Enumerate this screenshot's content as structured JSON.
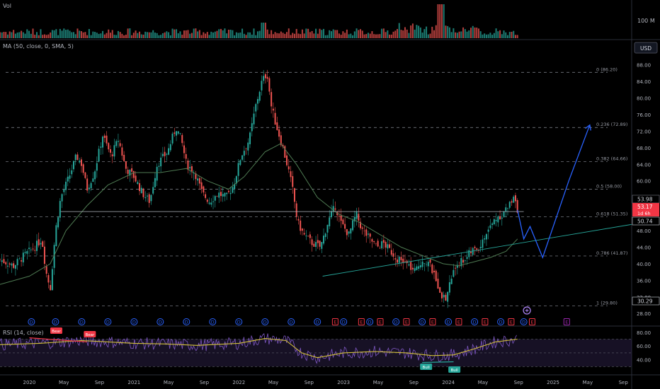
{
  "volume_pane": {
    "label": "Vol",
    "axis_label": "100 M"
  },
  "main_pane": {
    "indicator_label": "MA (50, close, 0, SMA, 5)",
    "currency_button": "USD",
    "price_ticks": [
      "88.00",
      "84.00",
      "80.00",
      "76.00",
      "72.00",
      "68.00",
      "64.00",
      "60.00",
      "56.00",
      "52.00",
      "48.00",
      "44.00",
      "40.00",
      "36.00",
      "32.00",
      "28.00"
    ],
    "price_labels": {
      "upper": "53.98",
      "current": "53.17",
      "countdown": "1d 6h",
      "support": "50.74",
      "low": "30.29"
    }
  },
  "fib_levels": [
    {
      "label": "0 (86.20)",
      "value": 86.2
    },
    {
      "label": "0.236 (72.89)",
      "value": 72.89
    },
    {
      "label": "0.382 (64.66)",
      "value": 64.66
    },
    {
      "label": "0.5 (58.00)",
      "value": 58.0
    },
    {
      "label": "0.618 (51.35)",
      "value": 51.35
    },
    {
      "label": "0.786 (41.87)",
      "value": 41.87
    },
    {
      "label": "1 (29.80)",
      "value": 29.8
    }
  ],
  "event_markers": [
    {
      "kind": "D",
      "date": 2020.02
    },
    {
      "kind": "D",
      "date": 2020.25
    },
    {
      "kind": "D",
      "date": 2020.5
    },
    {
      "kind": "D",
      "date": 2020.75
    },
    {
      "kind": "D",
      "date": 2021.0
    },
    {
      "kind": "D",
      "date": 2021.25
    },
    {
      "kind": "D",
      "date": 2021.5
    },
    {
      "kind": "D",
      "date": 2021.75
    },
    {
      "kind": "D",
      "date": 2022.0
    },
    {
      "kind": "D",
      "date": 2022.25
    },
    {
      "kind": "D",
      "date": 2022.5
    },
    {
      "kind": "D",
      "date": 2022.75
    },
    {
      "kind": "E",
      "date": 2022.92
    },
    {
      "kind": "D",
      "date": 2023.0
    },
    {
      "kind": "E",
      "date": 2023.17
    },
    {
      "kind": "D",
      "date": 2023.25
    },
    {
      "kind": "E",
      "date": 2023.35
    },
    {
      "kind": "D",
      "date": 2023.5
    },
    {
      "kind": "E",
      "date": 2023.6
    },
    {
      "kind": "D",
      "date": 2023.75
    },
    {
      "kind": "E",
      "date": 2023.85
    },
    {
      "kind": "D",
      "date": 2024.0
    },
    {
      "kind": "E",
      "date": 2024.1
    },
    {
      "kind": "D",
      "date": 2024.25
    },
    {
      "kind": "E",
      "date": 2024.35
    },
    {
      "kind": "D",
      "date": 2024.5
    },
    {
      "kind": "E",
      "date": 2024.6
    },
    {
      "kind": "D",
      "date": 2024.72
    },
    {
      "kind": "E",
      "date": 2024.8
    },
    {
      "kind": "E-future",
      "date": 2025.13
    }
  ],
  "rsi_pane": {
    "label": "RSI (14, close)",
    "ticks": [
      "80.00",
      "60.00",
      "40.00"
    ],
    "bear_badges": [
      "Bear",
      "Bear"
    ],
    "bull_badges": [
      "Bull",
      "Bull"
    ]
  },
  "time_axis": [
    "2020",
    "May",
    "Sep",
    "2021",
    "May",
    "Sep",
    "2022",
    "May",
    "Sep",
    "2023",
    "May",
    "Sep",
    "2024",
    "May",
    "Sep",
    "2025",
    "May",
    "Sep"
  ],
  "colors": {
    "background": "#000000",
    "up_candle": "#26a69a",
    "down_candle": "#ef5350",
    "ma_line": "#4e7a52",
    "projection": "#2962ff",
    "rsi_line": "#7e57c2",
    "rsi_ma": "#d4c13a",
    "price_label_red": "#f23645"
  },
  "chart_data": {
    "type": "candlestick",
    "x_range": [
      2019.72,
      2025.75
    ],
    "y_range": [
      26.5,
      90
    ],
    "close_path": [
      [
        2019.72,
        41
      ],
      [
        2019.85,
        39.5
      ],
      [
        2019.95,
        42
      ],
      [
        2020.05,
        44
      ],
      [
        2020.12,
        46
      ],
      [
        2020.16,
        38
      ],
      [
        2020.2,
        34
      ],
      [
        2020.25,
        48
      ],
      [
        2020.3,
        56
      ],
      [
        2020.38,
        61
      ],
      [
        2020.45,
        66
      ],
      [
        2020.5,
        64
      ],
      [
        2020.55,
        58
      ],
      [
        2020.62,
        62
      ],
      [
        2020.7,
        71
      ],
      [
        2020.78,
        66
      ],
      [
        2020.85,
        70
      ],
      [
        2020.92,
        63
      ],
      [
        2021.0,
        61
      ],
      [
        2021.08,
        57
      ],
      [
        2021.15,
        55
      ],
      [
        2021.22,
        64
      ],
      [
        2021.32,
        67
      ],
      [
        2021.4,
        73
      ],
      [
        2021.45,
        70
      ],
      [
        2021.5,
        64
      ],
      [
        2021.58,
        62
      ],
      [
        2021.65,
        57
      ],
      [
        2021.72,
        55
      ],
      [
        2021.8,
        57
      ],
      [
        2021.88,
        56
      ],
      [
        2021.95,
        59
      ],
      [
        2022.02,
        66
      ],
      [
        2022.1,
        70
      ],
      [
        2022.16,
        78
      ],
      [
        2022.22,
        84
      ],
      [
        2022.27,
        86
      ],
      [
        2022.31,
        78
      ],
      [
        2022.35,
        74
      ],
      [
        2022.42,
        68
      ],
      [
        2022.48,
        62
      ],
      [
        2022.52,
        57
      ],
      [
        2022.56,
        50
      ],
      [
        2022.62,
        47
      ],
      [
        2022.7,
        45
      ],
      [
        2022.78,
        44
      ],
      [
        2022.85,
        50
      ],
      [
        2022.92,
        54
      ],
      [
        2022.97,
        50
      ],
      [
        2023.05,
        47
      ],
      [
        2023.12,
        52
      ],
      [
        2023.18,
        48
      ],
      [
        2023.25,
        46
      ],
      [
        2023.32,
        44
      ],
      [
        2023.38,
        45
      ],
      [
        2023.45,
        43
      ],
      [
        2023.52,
        41
      ],
      [
        2023.6,
        40
      ],
      [
        2023.68,
        38
      ],
      [
        2023.75,
        41
      ],
      [
        2023.82,
        40
      ],
      [
        2023.88,
        36
      ],
      [
        2023.93,
        33
      ],
      [
        2023.97,
        31
      ],
      [
        2024.02,
        36
      ],
      [
        2024.08,
        40
      ],
      [
        2024.15,
        41
      ],
      [
        2024.22,
        43
      ],
      [
        2024.3,
        44
      ],
      [
        2024.38,
        48
      ],
      [
        2024.45,
        51
      ],
      [
        2024.52,
        52
      ],
      [
        2024.58,
        54
      ],
      [
        2024.63,
        57
      ],
      [
        2024.66,
        53.17
      ]
    ],
    "ma50": [
      [
        2019.72,
        35
      ],
      [
        2020.0,
        37
      ],
      [
        2020.2,
        40
      ],
      [
        2020.35,
        48
      ],
      [
        2020.55,
        54
      ],
      [
        2020.75,
        59
      ],
      [
        2021.0,
        62
      ],
      [
        2021.25,
        62
      ],
      [
        2021.5,
        63
      ],
      [
        2021.7,
        60
      ],
      [
        2021.9,
        58
      ],
      [
        2022.05,
        61
      ],
      [
        2022.25,
        67
      ],
      [
        2022.4,
        69
      ],
      [
        2022.55,
        64
      ],
      [
        2022.75,
        56
      ],
      [
        2022.95,
        52
      ],
      [
        2023.15,
        50
      ],
      [
        2023.35,
        47
      ],
      [
        2023.55,
        44
      ],
      [
        2023.75,
        42
      ],
      [
        2023.95,
        40
      ],
      [
        2024.1,
        39.5
      ],
      [
        2024.25,
        40.5
      ],
      [
        2024.4,
        41.5
      ],
      [
        2024.55,
        43
      ],
      [
        2024.66,
        46
      ]
    ],
    "projection": [
      [
        2024.66,
        53
      ],
      [
        2024.72,
        46
      ],
      [
        2024.78,
        49
      ],
      [
        2024.9,
        41.5
      ],
      [
        2025.15,
        60
      ],
      [
        2025.35,
        73.5
      ]
    ],
    "trendline": [
      [
        2022.8,
        37
      ],
      [
        2025.75,
        49.5
      ]
    ],
    "resistance": [
      [
        2020.3,
        52.6
      ],
      [
        2024.72,
        52.6
      ]
    ],
    "rsi_ma": [
      [
        2019.72,
        62
      ],
      [
        2020.1,
        64
      ],
      [
        2020.5,
        68
      ],
      [
        2021.0,
        64
      ],
      [
        2021.3,
        63
      ],
      [
        2021.6,
        61
      ],
      [
        2022.0,
        64
      ],
      [
        2022.25,
        71
      ],
      [
        2022.45,
        68
      ],
      [
        2022.6,
        50
      ],
      [
        2022.75,
        43
      ],
      [
        2023.0,
        50
      ],
      [
        2023.3,
        52
      ],
      [
        2023.6,
        50
      ],
      [
        2023.85,
        46
      ],
      [
        2024.05,
        47
      ],
      [
        2024.25,
        56
      ],
      [
        2024.45,
        66
      ],
      [
        2024.66,
        70
      ]
    ],
    "volume_scale_max": 100,
    "rsi_range": [
      20,
      85
    ]
  }
}
